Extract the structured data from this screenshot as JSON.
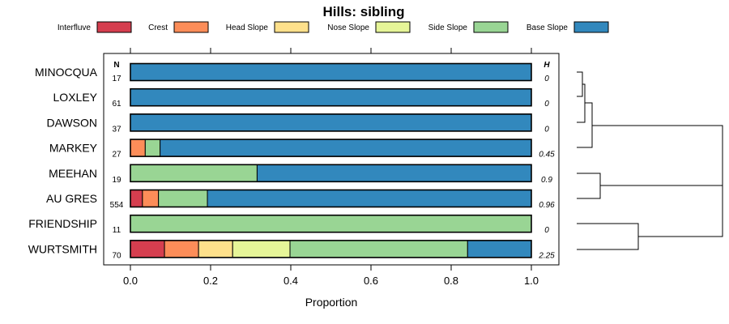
{
  "chart_data": {
    "type": "bar",
    "orientation": "horizontal-stacked",
    "title": "Hills: sibling",
    "xlabel": "Proportion",
    "xlim": [
      0,
      1
    ],
    "xticks": [
      {
        "value": 0,
        "label": "0.0"
      },
      {
        "value": 0.2,
        "label": "0.2"
      },
      {
        "value": 0.4,
        "label": "0.4"
      },
      {
        "value": 0.6,
        "label": "0.6"
      },
      {
        "value": 0.8,
        "label": "0.8"
      },
      {
        "value": 1,
        "label": "1.0"
      }
    ],
    "n_header": "N",
    "h_header": "H",
    "legend": [
      {
        "name": "Interfluve",
        "color": "#d53e4f"
      },
      {
        "name": "Crest",
        "color": "#fc8d59"
      },
      {
        "name": "Head Slope",
        "color": "#fee08b"
      },
      {
        "name": "Nose Slope",
        "color": "#e6f598"
      },
      {
        "name": "Side Slope",
        "color": "#99d594"
      },
      {
        "name": "Base Slope",
        "color": "#3288bd"
      }
    ],
    "categories": [
      "MINOCQUA",
      "LOXLEY",
      "DAWSON",
      "MARKEY",
      "MEEHAN",
      "AU GRES",
      "FRIENDSHIP",
      "WURTSMITH"
    ],
    "n": [
      "17",
      "61",
      "37",
      "27",
      "19",
      "554",
      "11",
      "70"
    ],
    "h": [
      "0",
      "0",
      "0",
      "0.45",
      "0.9",
      "0.96",
      "0",
      "2.25"
    ],
    "series": [
      {
        "name": "Interfluve",
        "values": [
          0,
          0,
          0,
          0,
          0,
          0.03,
          0,
          0.085
        ]
      },
      {
        "name": "Crest",
        "values": [
          0,
          0,
          0,
          0.037,
          0,
          0.04,
          0,
          0.085
        ]
      },
      {
        "name": "Head Slope",
        "values": [
          0,
          0,
          0,
          0,
          0,
          0,
          0,
          0.085
        ]
      },
      {
        "name": "Nose Slope",
        "values": [
          0,
          0,
          0,
          0,
          0,
          0,
          0,
          0.143
        ]
      },
      {
        "name": "Side Slope",
        "values": [
          0,
          0,
          0,
          0.037,
          0.316,
          0.122,
          1,
          0.443
        ]
      },
      {
        "name": "Base Slope",
        "values": [
          1,
          1,
          1,
          0.926,
          0.684,
          0.808,
          0,
          0.159
        ]
      }
    ]
  }
}
